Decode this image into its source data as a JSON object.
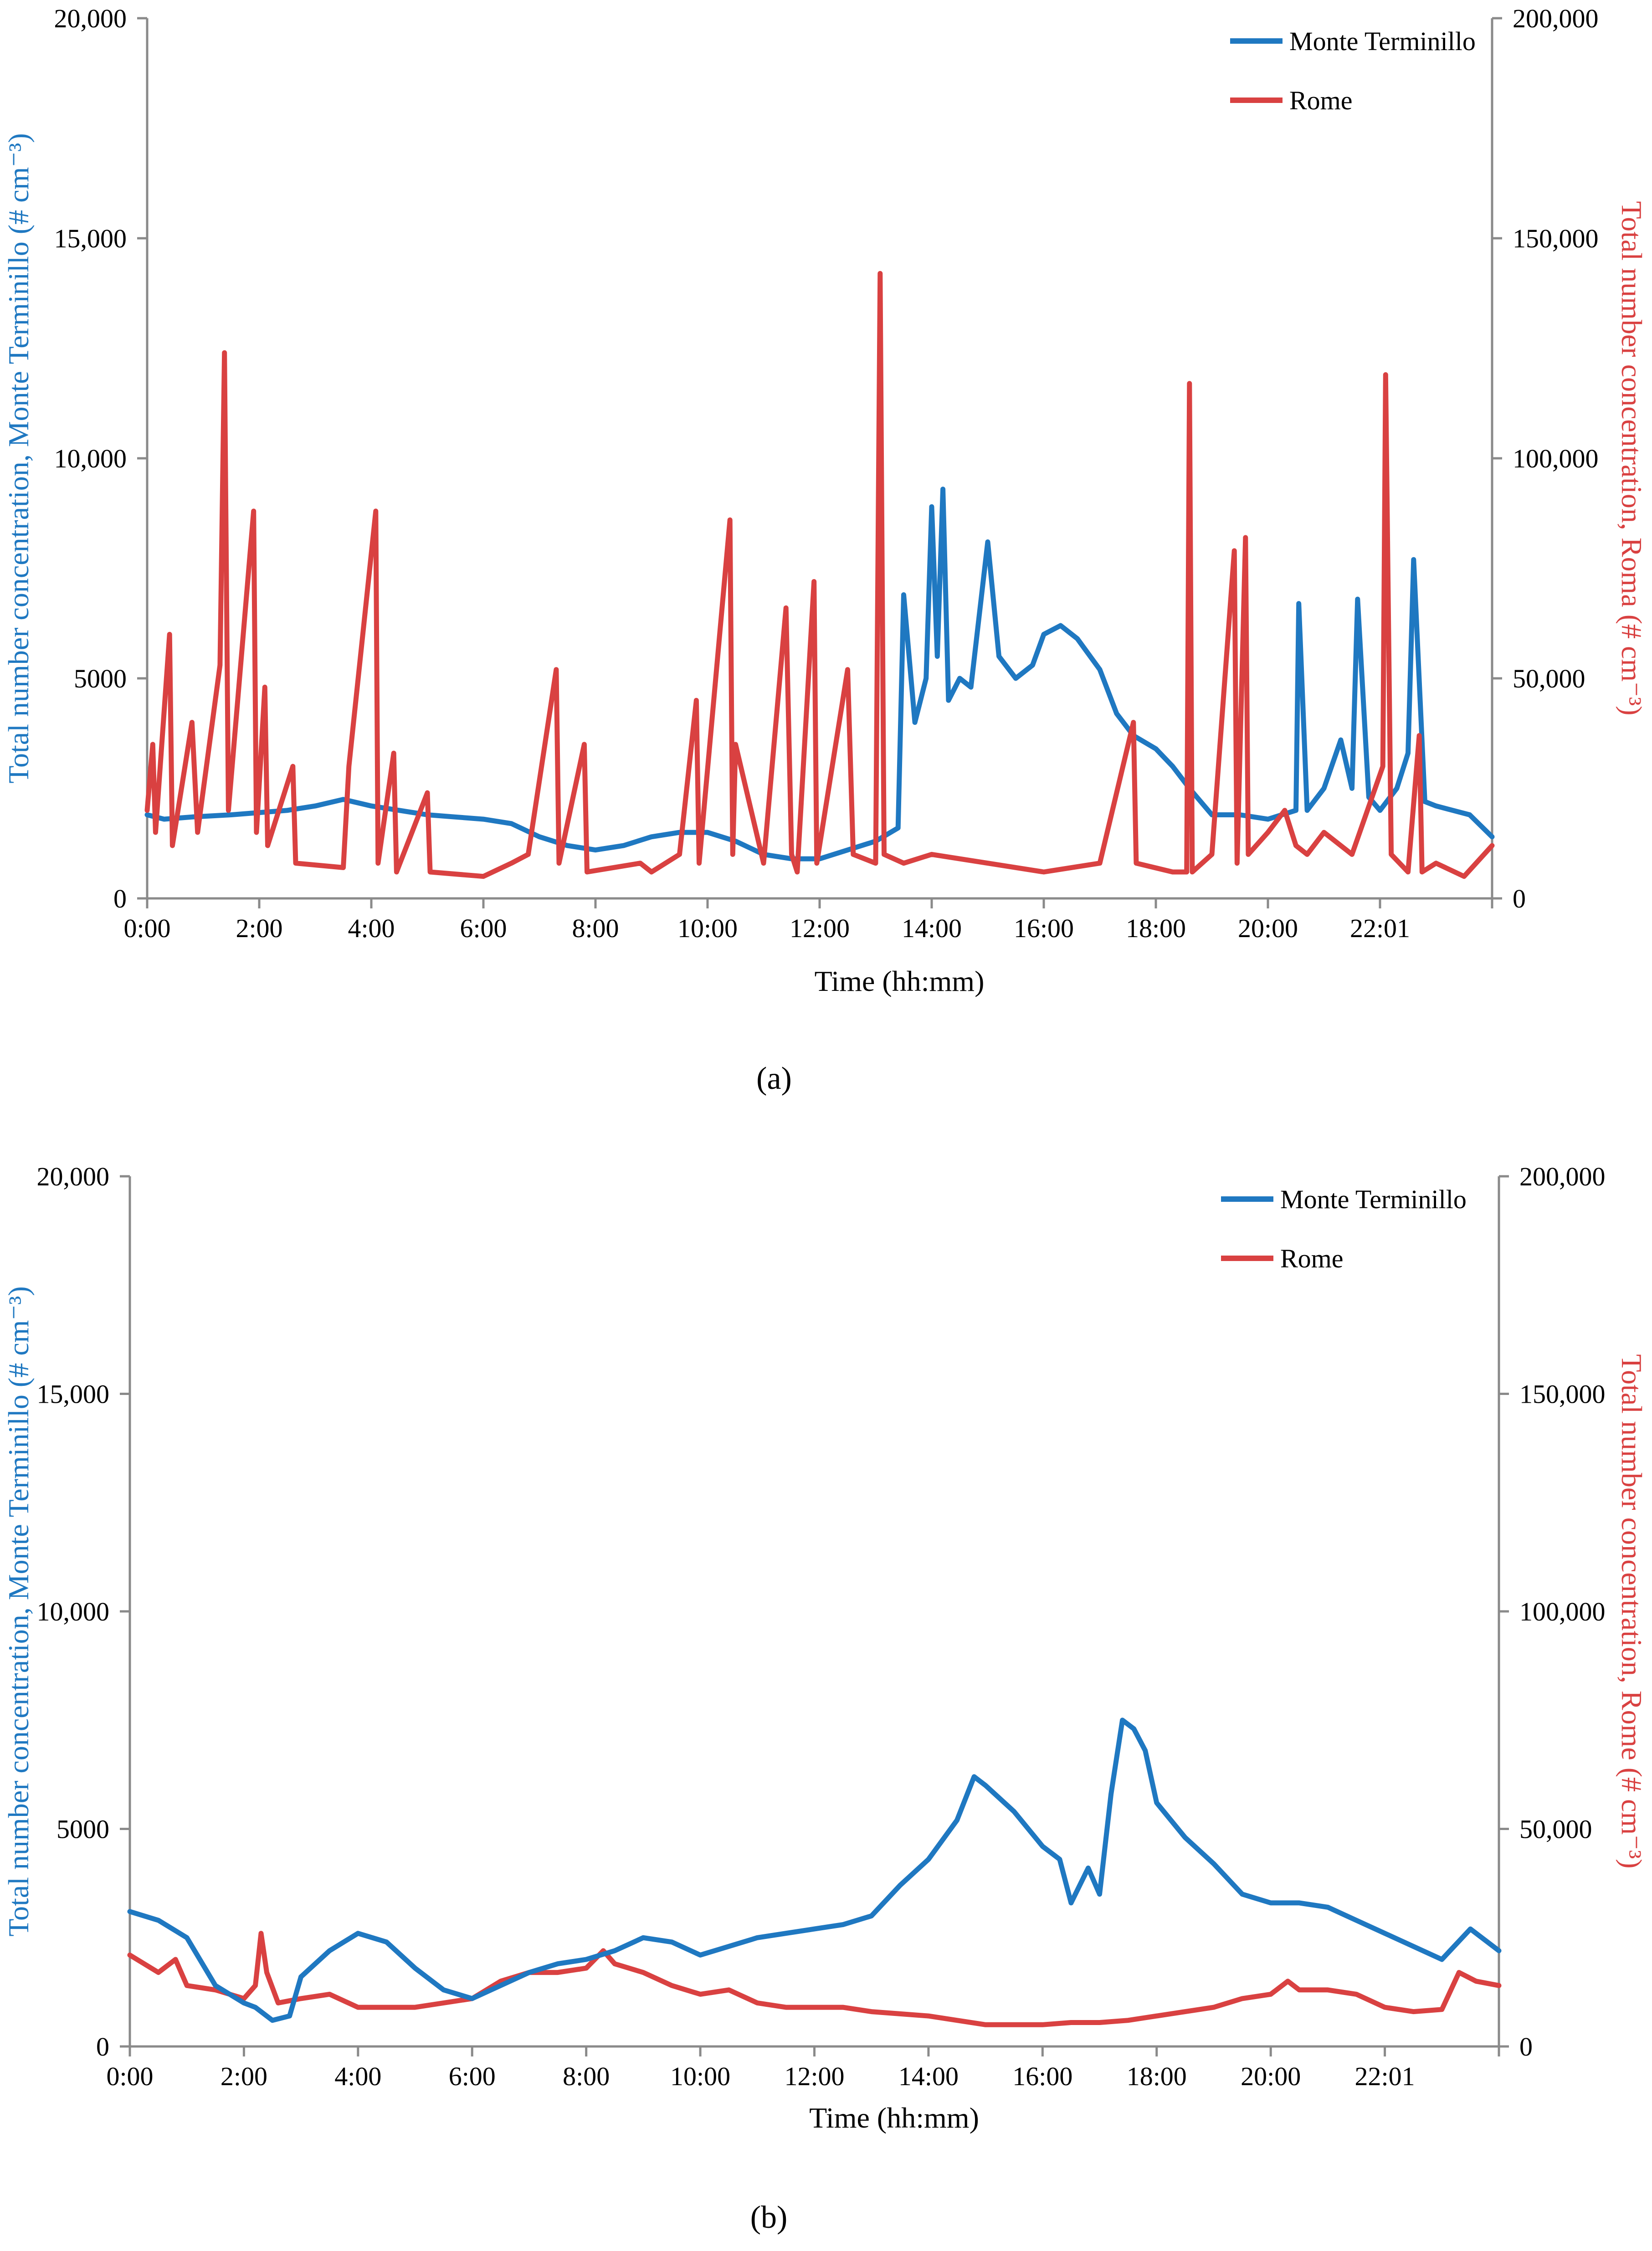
{
  "colors": {
    "blue": "#1f78c1",
    "red": "#d94141",
    "axis": "#8a8a8a",
    "text": "#000000"
  },
  "chart_data": [
    {
      "type": "line",
      "panel_label": "(a)",
      "panel_letter": "a",
      "x_ticks": [
        "0:00",
        "2:00",
        "4:00",
        "6:00",
        "8:00",
        "10:00",
        "12:00",
        "14:00",
        "16:00",
        "18:00",
        "20:00",
        "22:01"
      ],
      "xlabel": "Time (hh:mm)",
      "x_range_hours": [
        0,
        24
      ],
      "ylabel_left": "Total number concentration, Monte Terminillo (# cm⁻³)",
      "ylabel_right": "Total number concentration, Roma (# cm⁻³)",
      "ylim_left": [
        0,
        20000
      ],
      "ylim_right": [
        0,
        200000
      ],
      "yticks_left": [
        "0",
        "5000",
        "10,000",
        "15,000",
        "20,000"
      ],
      "yticks_right": [
        "0",
        "50,000",
        "100,000",
        "150,000",
        "200,000"
      ],
      "legend": [
        "Monte Terminillo",
        "Rome"
      ],
      "legend_position": "top-right",
      "series": [
        {
          "name": "Monte Terminillo",
          "axis": "left",
          "x": [
            0,
            0.3,
            0.8,
            1.5,
            2,
            2.5,
            3,
            3.5,
            4,
            4.5,
            5,
            5.5,
            6,
            6.5,
            7,
            7.5,
            8,
            8.5,
            9,
            9.5,
            10,
            10.5,
            11,
            11.5,
            12,
            12.5,
            13,
            13.4,
            13.5,
            13.7,
            13.9,
            14.0,
            14.1,
            14.2,
            14.3,
            14.5,
            14.7,
            15.0,
            15.2,
            15.5,
            15.8,
            16.0,
            16.3,
            16.6,
            17.0,
            17.3,
            17.6,
            18.0,
            18.3,
            18.6,
            19.0,
            19.5,
            20.0,
            20.5,
            20.55,
            20.7,
            21.0,
            21.3,
            21.5,
            21.6,
            21.8,
            22.0,
            22.3,
            22.5,
            22.6,
            22.8,
            23.0,
            23.3,
            23.6,
            24.0
          ],
          "y": [
            1900,
            1800,
            1850,
            1900,
            1950,
            2000,
            2100,
            2250,
            2100,
            2000,
            1900,
            1850,
            1800,
            1700,
            1400,
            1200,
            1100,
            1200,
            1400,
            1500,
            1500,
            1300,
            1000,
            900,
            900,
            1100,
            1300,
            1600,
            6900,
            4000,
            5000,
            8900,
            5500,
            9300,
            4500,
            5000,
            4800,
            8100,
            5500,
            5000,
            5300,
            6000,
            6200,
            5900,
            5200,
            4200,
            3700,
            3400,
            3000,
            2500,
            1900,
            1900,
            1800,
            2000,
            6700,
            2000,
            2500,
            3600,
            2500,
            6800,
            2300,
            2000,
            2500,
            3300,
            7700,
            2200,
            2100,
            2000,
            1900,
            1400
          ]
        },
        {
          "name": "Rome",
          "axis": "right",
          "x": [
            0,
            0.1,
            0.15,
            0.4,
            0.45,
            0.8,
            0.9,
            1.3,
            1.38,
            1.45,
            1.9,
            1.95,
            2.1,
            2.15,
            2.6,
            2.65,
            3.5,
            3.6,
            4.08,
            4.12,
            4.4,
            4.45,
            5,
            5.05,
            6,
            6.5,
            6.8,
            7.3,
            7.35,
            7.8,
            7.85,
            8.8,
            9,
            9.5,
            9.8,
            9.85,
            10.4,
            10.45,
            10.5,
            11,
            11.4,
            11.5,
            11.6,
            11.9,
            11.95,
            12.5,
            12.6,
            13.0,
            13.08,
            13.15,
            13.5,
            14,
            15,
            16,
            17,
            17.6,
            17.65,
            18.3,
            18.55,
            18.6,
            18.65,
            19,
            19.4,
            19.45,
            19.6,
            19.65,
            20,
            20.3,
            20.5,
            20.7,
            21,
            21.5,
            22.05,
            22.1,
            22.2,
            22.5,
            22.7,
            22.75,
            23,
            23.5,
            24
          ],
          "y": [
            20000,
            35000,
            15000,
            60000,
            12000,
            40000,
            15000,
            53000,
            124000,
            20000,
            88000,
            15000,
            48000,
            12000,
            30000,
            8000,
            7000,
            30000,
            88000,
            8000,
            33000,
            6000,
            24000,
            6000,
            5000,
            8000,
            10000,
            52000,
            8000,
            35000,
            6000,
            8000,
            6000,
            10000,
            45000,
            8000,
            86000,
            10000,
            35000,
            8000,
            66000,
            10000,
            6000,
            72000,
            8000,
            52000,
            10000,
            8000,
            142000,
            10000,
            8000,
            10000,
            8000,
            6000,
            8000,
            40000,
            8000,
            6000,
            6000,
            117000,
            6000,
            10000,
            79000,
            8000,
            82000,
            10000,
            15000,
            20000,
            12000,
            10000,
            15000,
            10000,
            30000,
            119000,
            10000,
            6000,
            37000,
            6000,
            8000,
            5000,
            12000
          ]
        }
      ]
    },
    {
      "type": "line",
      "panel_label": "(b)",
      "panel_letter": "b",
      "x_ticks": [
        "0:00",
        "2:00",
        "4:00",
        "6:00",
        "8:00",
        "10:00",
        "12:00",
        "14:00",
        "16:00",
        "18:00",
        "20:00",
        "22:01"
      ],
      "xlabel": "Time (hh:mm)",
      "x_range_hours": [
        0,
        24
      ],
      "ylabel_left": "Total number concentration, Monte Terminillo (# cm⁻³)",
      "ylabel_right": "Total number concentration, Rome (# cm⁻³)",
      "ylim_left": [
        0,
        20000
      ],
      "ylim_right": [
        0,
        200000
      ],
      "yticks_left": [
        "0",
        "5000",
        "10,000",
        "15,000",
        "20,000"
      ],
      "yticks_right": [
        "0",
        "50,000",
        "100,000",
        "150,000",
        "200,000"
      ],
      "legend": [
        "Monte Terminillo",
        "Rome"
      ],
      "legend_position": "top-right",
      "series": [
        {
          "name": "Monte Terminillo",
          "axis": "left",
          "x": [
            0,
            0.5,
            1.0,
            1.5,
            2.0,
            2.2,
            2.5,
            2.8,
            3.0,
            3.5,
            4.0,
            4.5,
            5.0,
            5.5,
            6.0,
            6.5,
            7.0,
            7.5,
            8.0,
            8.5,
            9.0,
            9.5,
            10.0,
            10.5,
            11.0,
            11.5,
            12.0,
            12.5,
            13.0,
            13.5,
            14.0,
            14.5,
            14.8,
            15.0,
            15.5,
            16.0,
            16.3,
            16.5,
            16.8,
            17.0,
            17.2,
            17.4,
            17.6,
            17.8,
            18.0,
            18.5,
            19.0,
            19.5,
            20.0,
            20.5,
            21.0,
            21.5,
            22.0,
            22.5,
            23.0,
            23.5,
            24.0
          ],
          "y": [
            3100,
            2900,
            2500,
            1400,
            1000,
            900,
            600,
            700,
            1600,
            2200,
            2600,
            2400,
            1800,
            1300,
            1100,
            1400,
            1700,
            1900,
            2000,
            2200,
            2500,
            2400,
            2100,
            2300,
            2500,
            2600,
            2700,
            2800,
            3000,
            3700,
            4300,
            5200,
            6200,
            6000,
            5400,
            4600,
            4300,
            3300,
            4100,
            3500,
            5800,
            7500,
            7300,
            6800,
            5600,
            4800,
            4200,
            3500,
            3300,
            3300,
            3200,
            2900,
            2600,
            2300,
            2000,
            2700,
            2200
          ]
        },
        {
          "name": "Rome",
          "axis": "right",
          "x": [
            0,
            0.5,
            0.8,
            1.0,
            1.5,
            2.0,
            2.2,
            2.3,
            2.4,
            2.6,
            3.0,
            3.5,
            4.0,
            4.5,
            5.0,
            5.5,
            6.0,
            6.5,
            7.0,
            7.5,
            8.0,
            8.3,
            8.5,
            9.0,
            9.5,
            10.0,
            10.5,
            11.0,
            11.5,
            12.0,
            12.5,
            13.0,
            13.5,
            14.0,
            14.5,
            15.0,
            15.5,
            16.0,
            16.5,
            17.0,
            17.5,
            18.0,
            18.5,
            19.0,
            19.5,
            20.0,
            20.3,
            20.5,
            21.0,
            21.5,
            22.0,
            22.5,
            23.0,
            23.3,
            23.6,
            24.0
          ],
          "y": [
            21000,
            17000,
            20000,
            14000,
            13000,
            11000,
            14000,
            26000,
            17000,
            10000,
            11000,
            12000,
            9000,
            9000,
            9000,
            10000,
            11000,
            15000,
            17000,
            17000,
            18000,
            22000,
            19000,
            17000,
            14000,
            12000,
            13000,
            10000,
            9000,
            9000,
            9000,
            8000,
            7500,
            7000,
            6000,
            5000,
            5000,
            5000,
            5500,
            5500,
            6000,
            7000,
            8000,
            9000,
            11000,
            12000,
            15000,
            13000,
            13000,
            12000,
            9000,
            8000,
            8500,
            17000,
            15000,
            14000
          ]
        }
      ]
    }
  ]
}
